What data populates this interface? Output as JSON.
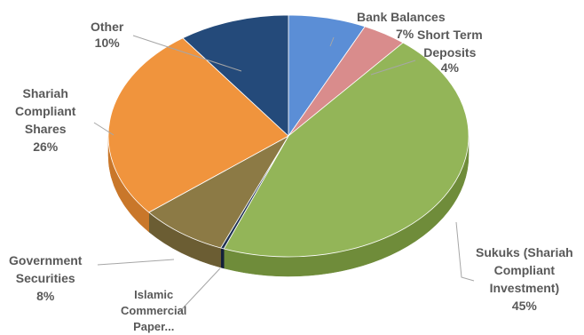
{
  "chart_data": {
    "type": "pie",
    "title": "",
    "style": "3d",
    "slices": [
      {
        "label": "Bank Balances",
        "value": 7,
        "pct": "7%",
        "color": "#5b8ed6",
        "side": "#3f6fb3"
      },
      {
        "label": "Short Term Deposits",
        "value": 4,
        "pct": "4%",
        "color": "#d98c8c",
        "side": "#b56868"
      },
      {
        "label": "Sukuks (Shariah Compliant Investment)",
        "value": 45,
        "pct": "45%",
        "color": "#93b558",
        "side": "#6f8c3a"
      },
      {
        "label": "Islamic Commercial Paper...",
        "value": 0.3,
        "pct": "",
        "color": "#1f3152",
        "side": "#14203a"
      },
      {
        "label": "Government Securities",
        "value": 8,
        "pct": "8%",
        "color": "#8c7a45",
        "side": "#6b5d33"
      },
      {
        "label": "Shariah Compliant Shares",
        "value": 26,
        "pct": "26%",
        "color": "#f0943d",
        "side": "#c9772a"
      },
      {
        "label": "Other",
        "value": 10,
        "pct": "10%",
        "color": "#244a7a",
        "side": "#183456"
      }
    ]
  },
  "labels": {
    "bank": {
      "l1": "Bank Balances",
      "l2": "7%"
    },
    "short": {
      "l1": "Short Term",
      "l2": "Deposits",
      "l3": "4%"
    },
    "sukuk": {
      "l1": "Sukuks (Shariah",
      "l2": "Compliant",
      "l3": "Investment)",
      "l4": "45%"
    },
    "islamic": {
      "l1": "Islamic",
      "l2": "Commercial",
      "l3": "Paper..."
    },
    "gov": {
      "l1": "Government",
      "l2": "Securities",
      "l3": "8%"
    },
    "shares": {
      "l1": "Shariah",
      "l2": "Compliant",
      "l3": "Shares",
      "l4": "26%"
    },
    "other": {
      "l1": "Other",
      "l2": "10%"
    }
  }
}
